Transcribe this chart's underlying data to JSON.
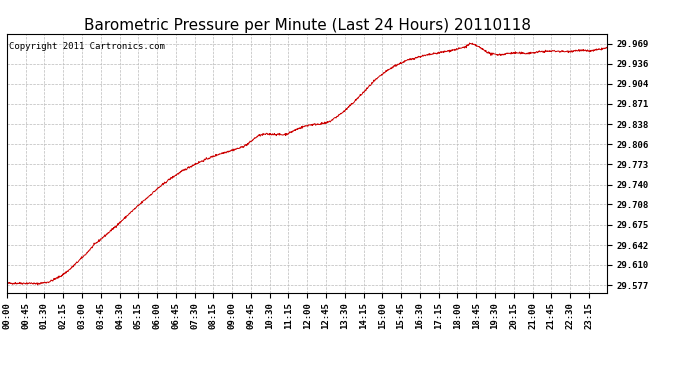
{
  "title": "Barometric Pressure per Minute (Last 24 Hours) 20110118",
  "copyright": "Copyright 2011 Cartronics.com",
  "background_color": "#ffffff",
  "plot_bg_color": "#ffffff",
  "line_color": "#cc0000",
  "grid_color": "#bbbbbb",
  "yticks": [
    29.577,
    29.61,
    29.642,
    29.675,
    29.708,
    29.74,
    29.773,
    29.806,
    29.838,
    29.871,
    29.904,
    29.936,
    29.969
  ],
  "ytick_labels": [
    "29.577",
    "29.610",
    "29.642",
    "29.675",
    "29.708",
    "29.740",
    "29.773",
    "29.806",
    "29.838",
    "29.871",
    "29.904",
    "29.936",
    "29.969"
  ],
  "ylim": [
    29.565,
    29.985
  ],
  "xtick_labels": [
    "00:00",
    "00:45",
    "01:30",
    "02:15",
    "03:00",
    "03:45",
    "04:30",
    "05:15",
    "06:00",
    "06:45",
    "07:30",
    "08:15",
    "09:00",
    "09:45",
    "10:30",
    "11:15",
    "12:00",
    "12:45",
    "13:30",
    "14:15",
    "15:00",
    "15:45",
    "16:30",
    "17:15",
    "18:00",
    "18:45",
    "19:30",
    "20:15",
    "21:00",
    "21:45",
    "22:30",
    "23:15"
  ],
  "title_fontsize": 11,
  "axis_fontsize": 6.5,
  "copyright_fontsize": 6.5,
  "ctrl_points": [
    [
      0,
      29.58
    ],
    [
      30,
      29.58
    ],
    [
      60,
      29.58
    ],
    [
      70,
      29.579
    ],
    [
      90,
      29.581
    ],
    [
      100,
      29.582
    ],
    [
      110,
      29.585
    ],
    [
      130,
      29.592
    ],
    [
      150,
      29.602
    ],
    [
      170,
      29.615
    ],
    [
      190,
      29.628
    ],
    [
      210,
      29.643
    ],
    [
      240,
      29.66
    ],
    [
      270,
      29.678
    ],
    [
      300,
      29.697
    ],
    [
      330,
      29.715
    ],
    [
      360,
      29.733
    ],
    [
      390,
      29.749
    ],
    [
      420,
      29.762
    ],
    [
      450,
      29.773
    ],
    [
      480,
      29.782
    ],
    [
      510,
      29.79
    ],
    [
      540,
      29.796
    ],
    [
      560,
      29.8
    ],
    [
      575,
      29.805
    ],
    [
      585,
      29.81
    ],
    [
      595,
      29.816
    ],
    [
      605,
      29.82
    ],
    [
      620,
      29.822
    ],
    [
      640,
      29.822
    ],
    [
      660,
      29.821
    ],
    [
      670,
      29.822
    ],
    [
      680,
      29.825
    ],
    [
      695,
      29.83
    ],
    [
      710,
      29.834
    ],
    [
      725,
      29.837
    ],
    [
      740,
      29.838
    ],
    [
      755,
      29.839
    ],
    [
      765,
      29.84
    ],
    [
      775,
      29.843
    ],
    [
      790,
      29.85
    ],
    [
      810,
      29.86
    ],
    [
      830,
      29.873
    ],
    [
      855,
      29.89
    ],
    [
      880,
      29.908
    ],
    [
      905,
      29.922
    ],
    [
      930,
      29.933
    ],
    [
      960,
      29.942
    ],
    [
      990,
      29.948
    ],
    [
      1020,
      29.952
    ],
    [
      1050,
      29.956
    ],
    [
      1080,
      29.96
    ],
    [
      1100,
      29.964
    ],
    [
      1110,
      29.969
    ],
    [
      1125,
      29.966
    ],
    [
      1140,
      29.96
    ],
    [
      1160,
      29.952
    ],
    [
      1185,
      29.951
    ],
    [
      1200,
      29.953
    ],
    [
      1220,
      29.954
    ],
    [
      1240,
      29.953
    ],
    [
      1260,
      29.954
    ],
    [
      1280,
      29.956
    ],
    [
      1310,
      29.957
    ],
    [
      1340,
      29.956
    ],
    [
      1370,
      29.958
    ],
    [
      1400,
      29.957
    ],
    [
      1439,
      29.962
    ]
  ]
}
